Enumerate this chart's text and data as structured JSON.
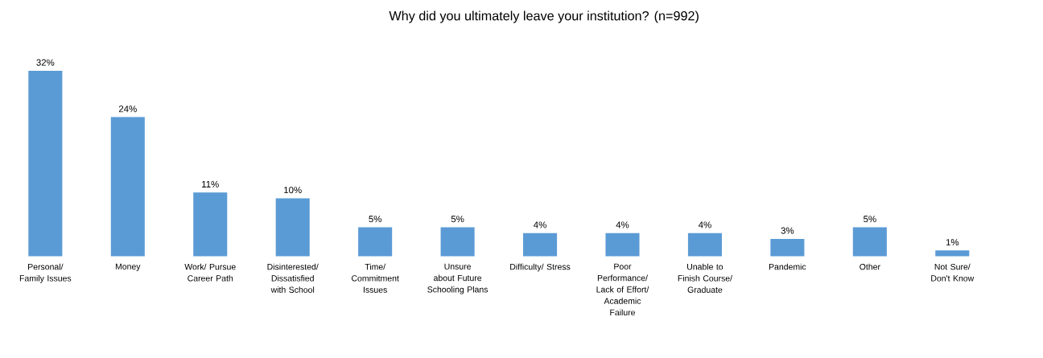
{
  "chart_data": {
    "type": "bar",
    "title": "Why did you ultimately leave your institution? (n=992)",
    "categories": [
      "Personal/ Family Issues",
      "Money",
      "Work/ Pursue Career Path",
      "Disinterested/ Dissatisfied with School",
      "Time/ Commitment Issues",
      "Unsure about Future Schooling Plans",
      "Difficulty/ Stress",
      "Poor Performance/ Lack of Effort/ Academic Failure",
      "Unable to Finish Course/ Graduate",
      "Pandemic",
      "Other",
      "Not Sure/ Don't Know"
    ],
    "values": [
      32,
      24,
      11,
      10,
      5,
      5,
      4,
      4,
      4,
      3,
      5,
      1
    ],
    "value_labels": [
      "32%",
      "24%",
      "11%",
      "10%",
      "5%",
      "5%",
      "4%",
      "4%",
      "4%",
      "3%",
      "5%",
      "1%"
    ],
    "color": "#5b9bd5"
  }
}
